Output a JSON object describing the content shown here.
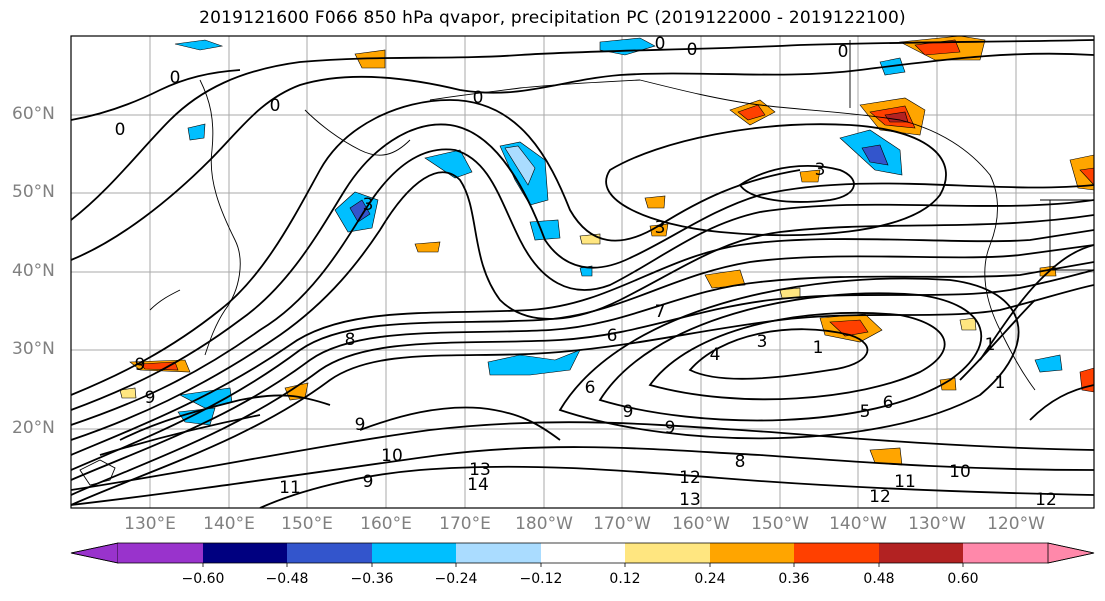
{
  "title": "2019121600 F066 850 hPa qvapor, precipitation PC (2019122000 - 2019122100)",
  "lat_labels": [
    "60°N",
    "50°N",
    "40°N",
    "30°N",
    "20°N"
  ],
  "lon_labels": [
    "130°E",
    "140°E",
    "150°E",
    "160°E",
    "170°E",
    "180°W",
    "170°W",
    "160°W",
    "150°W",
    "140°W",
    "130°W",
    "120°W"
  ],
  "colorbar": {
    "colors": [
      "#9933cc",
      "#000080",
      "#3355cc",
      "#00bfff",
      "#aadcff",
      "#ffffff",
      "#ffe680",
      "#ffa500",
      "#ff4000",
      "#b22222",
      "#ff88aa"
    ],
    "ticks": [
      "−0.60",
      "−0.48",
      "−0.36",
      "−0.24",
      "−0.12",
      "0.12",
      "0.24",
      "0.36",
      "0.48",
      "0.60"
    ]
  },
  "contour_labels": [
    "0",
    "0",
    "0",
    "0",
    "0",
    "0",
    "0",
    "3",
    "3",
    "3",
    "1",
    "3",
    "4",
    "5",
    "6",
    "6",
    "6",
    "7",
    "8",
    "8",
    "9",
    "9",
    "9",
    "9",
    "9",
    "9",
    "10",
    "10",
    "11",
    "11",
    "12",
    "12",
    "12",
    "13",
    "13",
    "14",
    "1",
    "1"
  ]
}
